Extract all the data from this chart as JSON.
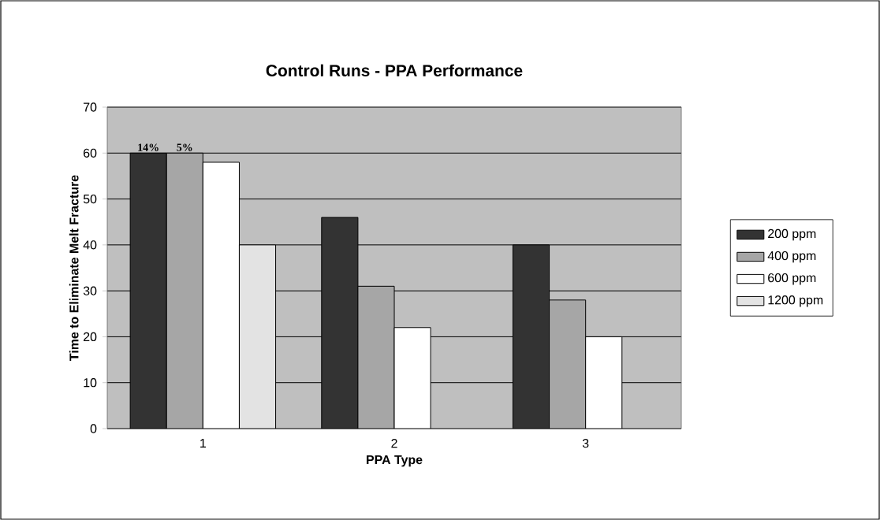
{
  "chart_data": {
    "type": "bar",
    "title": "Control Runs - PPA Performance",
    "xlabel": "PPA Type",
    "ylabel": "Time to Eliminate Melt Fracture",
    "categories": [
      "1",
      "2",
      "3"
    ],
    "series": [
      {
        "name": "200 ppm",
        "color": "#333333",
        "values": [
          60,
          46,
          40
        ]
      },
      {
        "name": "400 ppm",
        "color": "#a6a6a6",
        "values": [
          60,
          31,
          28
        ]
      },
      {
        "name": "600 ppm",
        "color": "#ffffff",
        "values": [
          58,
          22,
          20
        ]
      },
      {
        "name": "1200 ppm",
        "color": "#e3e3e3",
        "values": [
          40,
          null,
          null
        ]
      }
    ],
    "ylim": [
      0,
      70
    ],
    "yticks": [
      0,
      10,
      20,
      30,
      40,
      50,
      60,
      70
    ],
    "grid": "y",
    "legend": "right",
    "annotations": [
      "14%",
      "5%"
    ]
  }
}
